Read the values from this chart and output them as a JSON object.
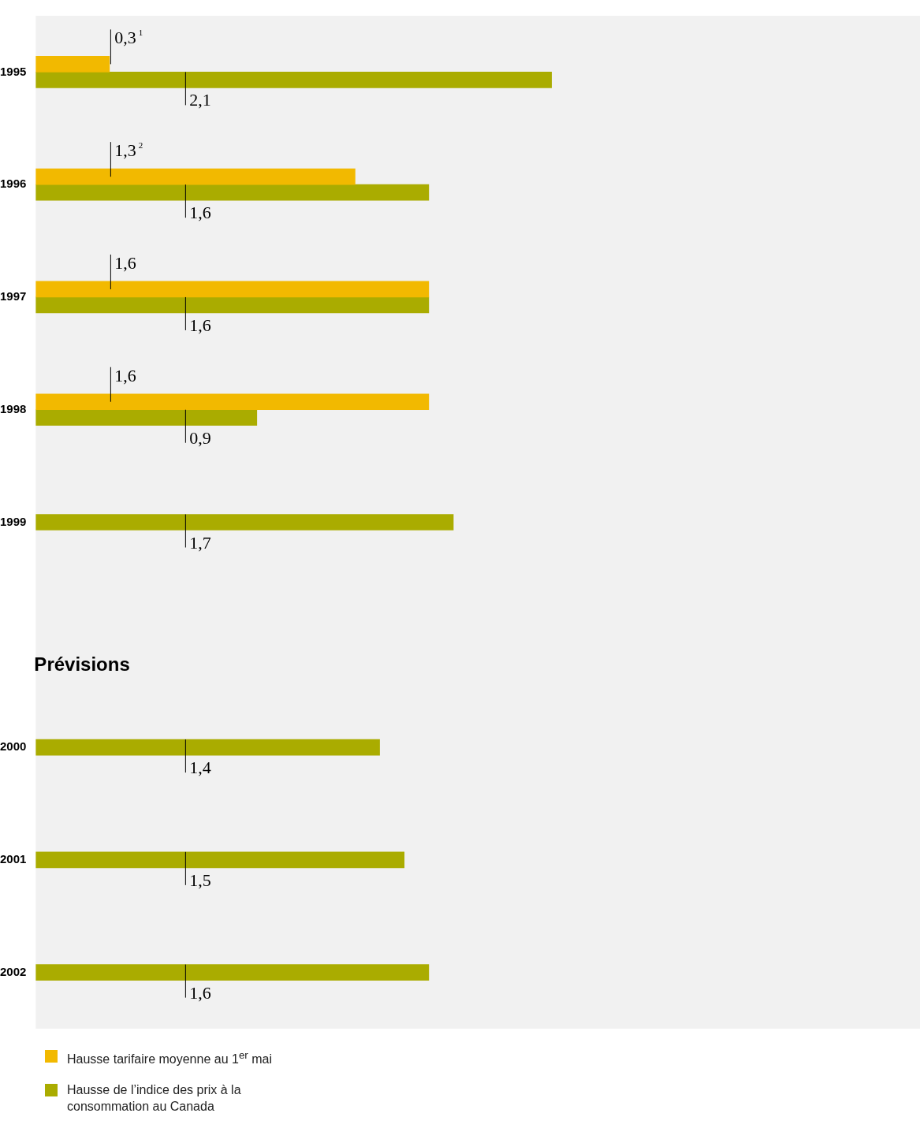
{
  "chart_data": {
    "type": "bar",
    "orientation": "horizontal",
    "categories": [
      "1995",
      "1996",
      "1997",
      "1998",
      "1999",
      null,
      "2000",
      "2001",
      "2002"
    ],
    "series": [
      {
        "name": "Hausse tarifaire moyenne au 1$^{er}$ mai",
        "color": "#f2b900",
        "values": [
          0.3,
          1.3,
          1.6,
          1.6,
          null,
          null,
          null,
          null,
          null
        ],
        "value_labels": [
          "0,3$^{1}$",
          "1,3$^{2}$",
          "1,6",
          "1,6",
          null,
          null,
          null,
          null,
          null
        ]
      },
      {
        "name": "Hausse de l’indice des prix à la consommation au Canada",
        "color": "#aaac00",
        "values": [
          2.1,
          1.6,
          1.6,
          0.9,
          1.7,
          null,
          1.4,
          1.5,
          1.6
        ],
        "value_labels": [
          "2,1",
          "1,6",
          "1,6",
          "0,9",
          "1,7",
          null,
          "1,4",
          "1,5",
          "1,6"
        ]
      }
    ],
    "xlim": [
      0,
      3.6
    ],
    "tick_labels": "y",
    "grid": false,
    "legend": "bottom left",
    "annotations": [
      "Prévisions"
    ]
  }
}
